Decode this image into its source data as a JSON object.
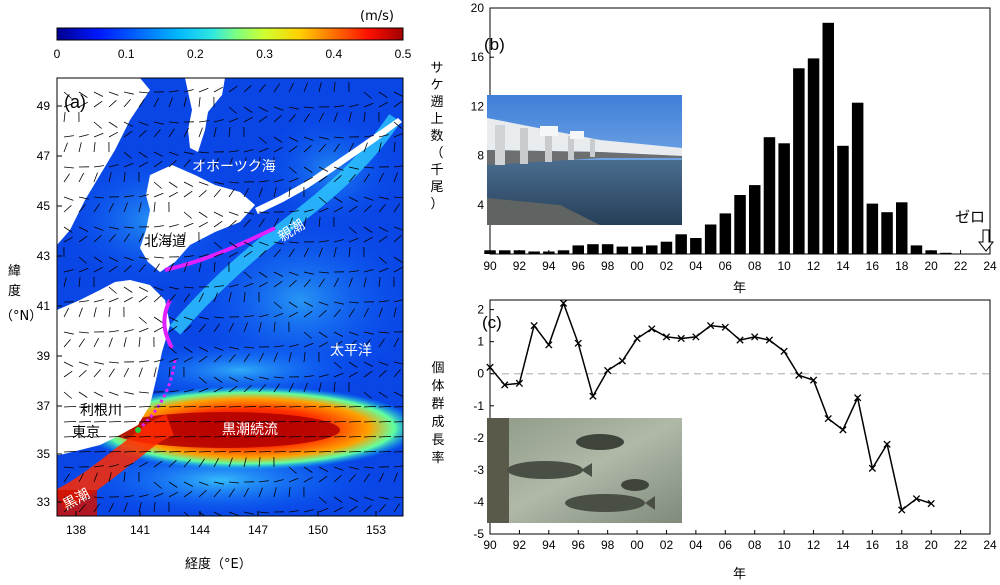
{
  "figure": {
    "panel_a": {
      "label": "(a)",
      "colorbar": {
        "unit": "(m/s)",
        "ticks": [
          "0",
          "0.1",
          "0.2",
          "0.3",
          "0.4",
          "0.5"
        ],
        "min": 0,
        "max": 0.5,
        "colors": [
          "#00008f",
          "#0018ff",
          "#0070ff",
          "#00b8ff",
          "#30e8e0",
          "#7fff7f",
          "#d0ff30",
          "#ffd000",
          "#ff7000",
          "#ff1000",
          "#a00000"
        ]
      },
      "x_ticks": [
        "138",
        "141",
        "144",
        "147",
        "150",
        "153"
      ],
      "y_ticks": [
        "49",
        "47",
        "45",
        "43",
        "41",
        "39",
        "37",
        "35",
        "33"
      ],
      "xlabel": "経度（°E）",
      "ylabel": [
        "緯",
        "度",
        "（°N）"
      ],
      "place_labels": {
        "okhotsk": "オホーツク海",
        "hokkaido": "北海道",
        "oyashio": "親潮",
        "pacific": "太平洋",
        "tone": "利根川",
        "tokyo": "東京",
        "kuroshio_ext": "黒潮続流",
        "kuroshio": "黒潮"
      }
    },
    "panel_b": {
      "label": "(b)",
      "annotation": "ゼロ",
      "ylabel": [
        "サ",
        "ケ",
        "遡",
        "上",
        "数",
        "（",
        "千",
        "尾",
        "）"
      ],
      "xlabel": "年",
      "x_ticks": [
        "90",
        "92",
        "94",
        "96",
        "98",
        "00",
        "02",
        "04",
        "06",
        "08",
        "10",
        "12",
        "14",
        "16",
        "18",
        "20",
        "22",
        "24"
      ],
      "y_ticks": [
        "4",
        "8",
        "12",
        "16",
        "20"
      ]
    },
    "panel_c": {
      "label": "(c)",
      "ylabel": [
        "個",
        "体",
        "群",
        "成",
        "長",
        "率"
      ],
      "xlabel": "年",
      "x_ticks": [
        "90",
        "92",
        "94",
        "96",
        "98",
        "00",
        "02",
        "04",
        "06",
        "08",
        "10",
        "12",
        "14",
        "16",
        "18",
        "20",
        "22",
        "24"
      ],
      "y_ticks": [
        "2",
        "1",
        "0",
        "-1",
        "-2",
        "-3",
        "-4",
        "-5"
      ]
    }
  },
  "chart_data": [
    {
      "type": "bar",
      "panel": "b",
      "ylabel": "サケ遡上数（千尾）",
      "xlabel": "年",
      "xlim": [
        1990,
        2024
      ],
      "ylim": [
        0,
        20
      ],
      "categories": [
        1990,
        1991,
        1992,
        1993,
        1994,
        1995,
        1996,
        1997,
        1998,
        1999,
        2000,
        2001,
        2002,
        2003,
        2004,
        2005,
        2006,
        2007,
        2008,
        2009,
        2010,
        2011,
        2012,
        2013,
        2014,
        2015,
        2016,
        2017,
        2018,
        2019,
        2020,
        2021,
        2022,
        2023
      ],
      "values": [
        0.3,
        0.3,
        0.3,
        0.2,
        0.2,
        0.3,
        0.7,
        0.8,
        0.8,
        0.6,
        0.6,
        0.7,
        1.0,
        1.6,
        1.3,
        2.4,
        3.3,
        4.8,
        5.6,
        9.5,
        9.0,
        15.1,
        15.9,
        18.8,
        8.8,
        12.3,
        4.1,
        3.4,
        4.2,
        0.7,
        0.3,
        0.1,
        0.0,
        0.0
      ],
      "annotation": "ゼロ"
    },
    {
      "type": "line",
      "panel": "c",
      "ylabel": "個体群成長率",
      "xlabel": "年",
      "xlim": [
        1990,
        2024
      ],
      "ylim": [
        -5,
        2.3
      ],
      "x": [
        1990,
        1991,
        1992,
        1993,
        1994,
        1995,
        1996,
        1997,
        1998,
        1999,
        2000,
        2001,
        2002,
        2003,
        2004,
        2005,
        2006,
        2007,
        2008,
        2009,
        2010,
        2011,
        2012,
        2013,
        2014,
        2015,
        2016,
        2017,
        2018,
        2019,
        2020
      ],
      "y": [
        0.2,
        -0.35,
        -0.3,
        1.5,
        0.9,
        2.2,
        0.95,
        -0.7,
        0.1,
        0.4,
        1.1,
        1.4,
        1.15,
        1.1,
        1.15,
        1.5,
        1.45,
        1.05,
        1.15,
        1.05,
        0.7,
        -0.05,
        -0.2,
        -1.4,
        -1.75,
        -0.75,
        -2.95,
        -2.2,
        -4.25,
        -3.9,
        -4.05
      ],
      "reference_line": 0
    }
  ]
}
